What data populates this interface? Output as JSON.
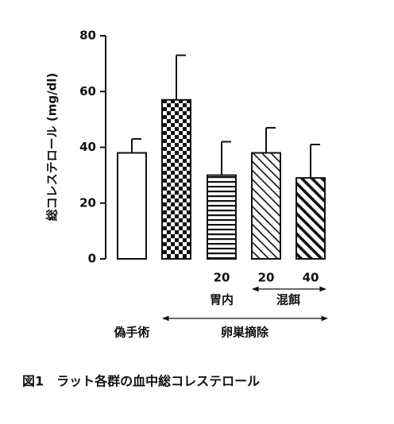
{
  "chart_data": {
    "type": "bar",
    "y_label": "総コレステロール (mg/dl)",
    "caption": "図1　ラット各群の血中総コレステロール",
    "categories": [
      null,
      null,
      "20",
      "20",
      "40"
    ],
    "values": [
      38,
      57,
      30,
      38,
      29
    ],
    "errors": [
      5,
      16,
      12,
      9,
      12
    ],
    "color": "#111111",
    "ylim": [
      0,
      80
    ],
    "yticks": [
      0,
      20,
      40,
      60,
      80
    ],
    "group_labels": [
      "胃内",
      "混餌",
      "偽手術",
      "卵巣摘除"
    ]
  }
}
